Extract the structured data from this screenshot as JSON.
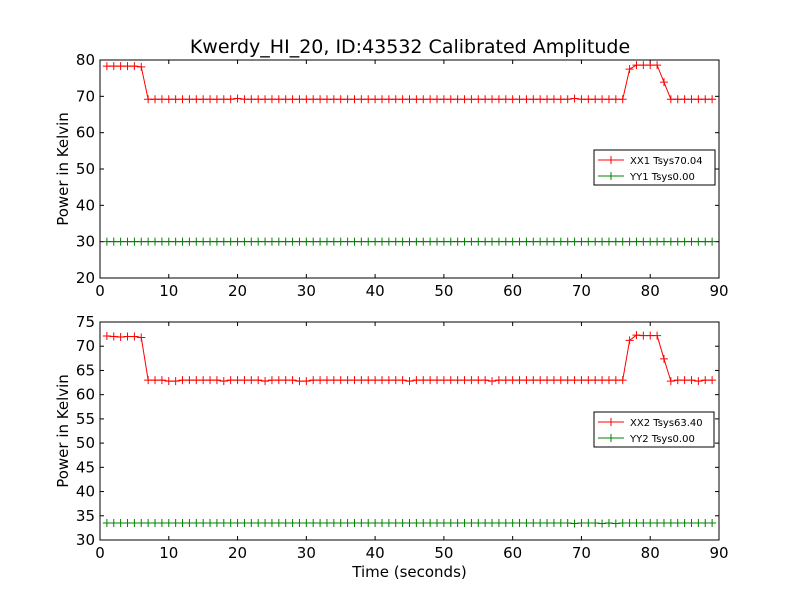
{
  "title": "Kwerdy_HI_20, ID:43532 Calibrated Amplitude",
  "colors": {
    "xx": "#ff0000",
    "yy": "#008000",
    "axes": "#000000",
    "background": "#ffffff"
  },
  "chart_data": [
    {
      "type": "line",
      "title": "Kwerdy_HI_20, ID:43532 Calibrated Amplitude",
      "xlabel": "",
      "ylabel": "Power in Kelvin",
      "xlim": [
        0,
        90
      ],
      "ylim": [
        20,
        80
      ],
      "xticks": [
        0,
        10,
        20,
        30,
        40,
        50,
        60,
        70,
        80,
        90
      ],
      "yticks": [
        20,
        30,
        40,
        50,
        60,
        70,
        80
      ],
      "grid": false,
      "legend_position": "right",
      "series": [
        {
          "name": "XX1 Tsys70.04",
          "color": "#ff0000",
          "x": [
            1,
            2,
            3,
            4,
            5,
            6,
            7,
            8,
            9,
            10,
            11,
            12,
            13,
            14,
            15,
            16,
            17,
            18,
            19,
            20,
            21,
            22,
            23,
            24,
            25,
            26,
            27,
            28,
            29,
            30,
            31,
            32,
            33,
            34,
            35,
            36,
            37,
            38,
            39,
            40,
            41,
            42,
            43,
            44,
            45,
            46,
            47,
            48,
            49,
            50,
            51,
            52,
            53,
            54,
            55,
            56,
            57,
            58,
            59,
            60,
            61,
            62,
            63,
            64,
            65,
            66,
            67,
            68,
            69,
            70,
            71,
            72,
            73,
            74,
            75,
            76,
            77,
            78,
            79,
            80,
            81,
            82,
            83,
            84,
            85,
            86,
            87,
            88,
            89
          ],
          "y": [
            78.3,
            78.3,
            78.3,
            78.3,
            78.3,
            78.1,
            69.2,
            69.2,
            69.2,
            69.2,
            69.2,
            69.2,
            69.2,
            69.2,
            69.2,
            69.2,
            69.2,
            69.2,
            69.2,
            69.4,
            69.2,
            69.2,
            69.2,
            69.2,
            69.2,
            69.2,
            69.2,
            69.2,
            69.2,
            69.2,
            69.2,
            69.2,
            69.2,
            69.2,
            69.2,
            69.2,
            69.2,
            69.2,
            69.2,
            69.2,
            69.2,
            69.2,
            69.2,
            69.2,
            69.2,
            69.2,
            69.2,
            69.2,
            69.2,
            69.2,
            69.2,
            69.2,
            69.2,
            69.2,
            69.2,
            69.2,
            69.2,
            69.2,
            69.2,
            69.2,
            69.2,
            69.2,
            69.2,
            69.2,
            69.2,
            69.2,
            69.2,
            69.2,
            69.4,
            69.2,
            69.2,
            69.2,
            69.2,
            69.2,
            69.2,
            69.2,
            77.5,
            78.6,
            78.6,
            78.6,
            78.6,
            73.9,
            69.2,
            69.2,
            69.2,
            69.2,
            69.2,
            69.2,
            69.2
          ]
        },
        {
          "name": "YY1 Tsys0.00",
          "color": "#008000",
          "x": [
            1,
            2,
            3,
            4,
            5,
            6,
            7,
            8,
            9,
            10,
            11,
            12,
            13,
            14,
            15,
            16,
            17,
            18,
            19,
            20,
            21,
            22,
            23,
            24,
            25,
            26,
            27,
            28,
            29,
            30,
            31,
            32,
            33,
            34,
            35,
            36,
            37,
            38,
            39,
            40,
            41,
            42,
            43,
            44,
            45,
            46,
            47,
            48,
            49,
            50,
            51,
            52,
            53,
            54,
            55,
            56,
            57,
            58,
            59,
            60,
            61,
            62,
            63,
            64,
            65,
            66,
            67,
            68,
            69,
            70,
            71,
            72,
            73,
            74,
            75,
            76,
            77,
            78,
            79,
            80,
            81,
            82,
            83,
            84,
            85,
            86,
            87,
            88,
            89
          ],
          "y": [
            30,
            30,
            30,
            30,
            30,
            30,
            30,
            30,
            30,
            30,
            30,
            30,
            30,
            30,
            30,
            30,
            30,
            30,
            30,
            30,
            30,
            30,
            30,
            30,
            30,
            30,
            30,
            30,
            30,
            30,
            30,
            30,
            30,
            30,
            30,
            30,
            30,
            30,
            30,
            30,
            30,
            30,
            30,
            30,
            30,
            30,
            30,
            30,
            30,
            30,
            30,
            30,
            30,
            30,
            30,
            30,
            30,
            30,
            30,
            30,
            30,
            30,
            30,
            30,
            30,
            30,
            30,
            30,
            30,
            30,
            30,
            30,
            30,
            30,
            30,
            30,
            30,
            30,
            30,
            30,
            30,
            30,
            30,
            30,
            30,
            30,
            30,
            30,
            30
          ]
        }
      ]
    },
    {
      "type": "line",
      "title": "",
      "xlabel": "Time (seconds)",
      "ylabel": "Power in Kelvin",
      "xlim": [
        0,
        90
      ],
      "ylim": [
        30,
        75
      ],
      "xticks": [
        0,
        10,
        20,
        30,
        40,
        50,
        60,
        70,
        80,
        90
      ],
      "yticks": [
        30,
        35,
        40,
        45,
        50,
        55,
        60,
        65,
        70,
        75
      ],
      "grid": false,
      "legend_position": "right",
      "series": [
        {
          "name": "XX2 Tsys63.40",
          "color": "#ff0000",
          "x": [
            1,
            2,
            3,
            4,
            5,
            6,
            7,
            8,
            9,
            10,
            11,
            12,
            13,
            14,
            15,
            16,
            17,
            18,
            19,
            20,
            21,
            22,
            23,
            24,
            25,
            26,
            27,
            28,
            29,
            30,
            31,
            32,
            33,
            34,
            35,
            36,
            37,
            38,
            39,
            40,
            41,
            42,
            43,
            44,
            45,
            46,
            47,
            48,
            49,
            50,
            51,
            52,
            53,
            54,
            55,
            56,
            57,
            58,
            59,
            60,
            61,
            62,
            63,
            64,
            65,
            66,
            67,
            68,
            69,
            70,
            71,
            72,
            73,
            74,
            75,
            76,
            77,
            78,
            79,
            80,
            81,
            82,
            83,
            84,
            85,
            86,
            87,
            88,
            89
          ],
          "y": [
            72.1,
            72.0,
            71.9,
            72.0,
            72.0,
            71.8,
            63.0,
            63.0,
            63.0,
            62.8,
            62.8,
            63.0,
            63.0,
            63.0,
            63.0,
            63.0,
            63.0,
            62.8,
            63.0,
            63.0,
            63.0,
            63.0,
            63.0,
            62.8,
            63.0,
            63.0,
            63.0,
            63.0,
            62.8,
            62.8,
            63.0,
            63.0,
            63.0,
            63.0,
            63.0,
            63.0,
            63.0,
            63.0,
            63.0,
            63.0,
            63.0,
            63.0,
            63.0,
            63.0,
            62.8,
            63.0,
            63.0,
            63.0,
            63.0,
            63.0,
            63.0,
            63.0,
            63.0,
            63.0,
            63.0,
            63.0,
            62.8,
            63.0,
            63.0,
            63.0,
            63.0,
            63.0,
            63.0,
            63.0,
            63.0,
            63.0,
            63.0,
            63.0,
            63.0,
            63.0,
            63.0,
            63.0,
            63.0,
            63.0,
            63.0,
            63.0,
            71.2,
            72.3,
            72.2,
            72.2,
            72.2,
            67.4,
            62.8,
            63.0,
            63.0,
            63.0,
            62.8,
            63.0,
            63.0
          ]
        },
        {
          "name": "YY2 Tsys0.00",
          "color": "#008000",
          "x": [
            1,
            2,
            3,
            4,
            5,
            6,
            7,
            8,
            9,
            10,
            11,
            12,
            13,
            14,
            15,
            16,
            17,
            18,
            19,
            20,
            21,
            22,
            23,
            24,
            25,
            26,
            27,
            28,
            29,
            30,
            31,
            32,
            33,
            34,
            35,
            36,
            37,
            38,
            39,
            40,
            41,
            42,
            43,
            44,
            45,
            46,
            47,
            48,
            49,
            50,
            51,
            52,
            53,
            54,
            55,
            56,
            57,
            58,
            59,
            60,
            61,
            62,
            63,
            64,
            65,
            66,
            67,
            68,
            69,
            70,
            71,
            72,
            73,
            74,
            75,
            76,
            77,
            78,
            79,
            80,
            81,
            82,
            83,
            84,
            85,
            86,
            87,
            88,
            89
          ],
          "y": [
            33.5,
            33.5,
            33.5,
            33.5,
            33.5,
            33.5,
            33.5,
            33.5,
            33.5,
            33.5,
            33.5,
            33.5,
            33.5,
            33.5,
            33.5,
            33.5,
            33.5,
            33.5,
            33.5,
            33.5,
            33.5,
            33.5,
            33.5,
            33.5,
            33.5,
            33.5,
            33.5,
            33.5,
            33.5,
            33.5,
            33.5,
            33.5,
            33.5,
            33.5,
            33.5,
            33.5,
            33.5,
            33.5,
            33.5,
            33.5,
            33.5,
            33.5,
            33.5,
            33.5,
            33.5,
            33.5,
            33.5,
            33.5,
            33.5,
            33.5,
            33.5,
            33.5,
            33.5,
            33.5,
            33.5,
            33.5,
            33.5,
            33.5,
            33.5,
            33.5,
            33.5,
            33.5,
            33.5,
            33.5,
            33.5,
            33.5,
            33.5,
            33.5,
            33.4,
            33.5,
            33.5,
            33.5,
            33.4,
            33.5,
            33.4,
            33.5,
            33.5,
            33.5,
            33.5,
            33.5,
            33.5,
            33.5,
            33.5,
            33.5,
            33.5,
            33.5,
            33.5,
            33.5,
            33.5
          ]
        }
      ]
    }
  ]
}
